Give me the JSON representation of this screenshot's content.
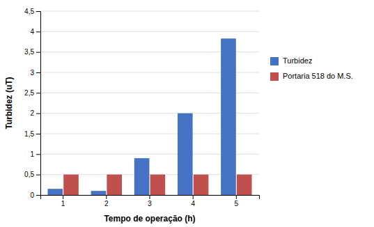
{
  "chart_data": {
    "type": "bar",
    "categories": [
      "1",
      "2",
      "3",
      "4",
      "5"
    ],
    "series": [
      {
        "name": "Turbidez",
        "color": "#4472C4",
        "values": [
          0.15,
          0.1,
          0.9,
          2.0,
          3.83
        ]
      },
      {
        "name": "Portaria 518 do M.S.",
        "color": "#C0504D",
        "values": [
          0.5,
          0.5,
          0.5,
          0.5,
          0.5
        ]
      }
    ],
    "xlabel": "Tempo de operação (h)",
    "ylabel": "Turbidez (uT)",
    "ylim": [
      0,
      4.5
    ],
    "yticks": [
      0,
      {
        "value": 0.5,
        "label": "0,5"
      },
      1,
      {
        "value": 1.5,
        "label": "1,5"
      },
      2,
      {
        "value": 2.5,
        "label": "2,5"
      },
      3,
      {
        "value": 3.5,
        "label": "3,5"
      },
      4,
      {
        "value": 4.5,
        "label": "4,5"
      }
    ],
    "grid": true,
    "legend": "right"
  }
}
